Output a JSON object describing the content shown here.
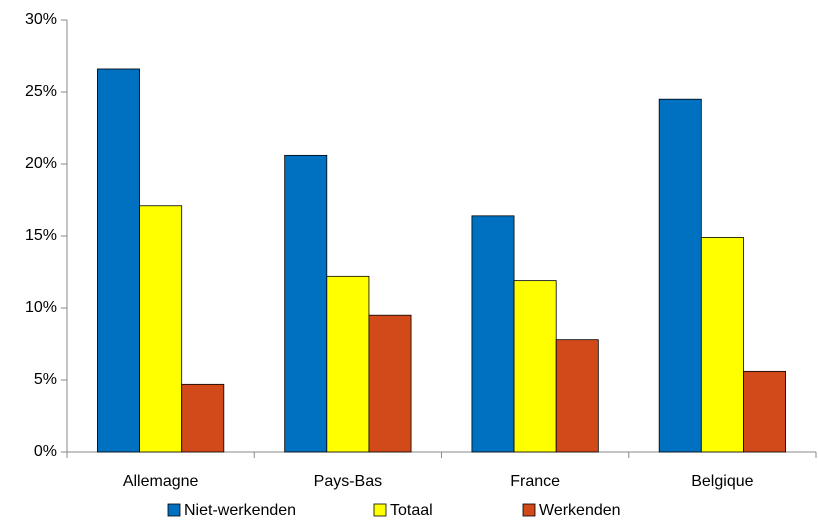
{
  "chart_data": {
    "type": "bar",
    "categories": [
      "Allemagne",
      "Pays-Bas",
      "France",
      "Belgique"
    ],
    "series": [
      {
        "name": "Niet-werkenden",
        "color": "#0070c0",
        "values": [
          26.6,
          20.6,
          16.4,
          24.5
        ]
      },
      {
        "name": "Totaal",
        "color": "#ffff00",
        "values": [
          17.1,
          12.2,
          11.9,
          14.9
        ]
      },
      {
        "name": "Werkenden",
        "color": "#d24a1a",
        "values": [
          4.7,
          9.5,
          7.8,
          5.6
        ]
      }
    ],
    "ylim": [
      0,
      30
    ],
    "yticks": [
      {
        "value": 0,
        "label": "0%"
      },
      {
        "value": 5,
        "label": "5%"
      },
      {
        "value": 10,
        "label": "10%"
      },
      {
        "value": 15,
        "label": "15%"
      },
      {
        "value": 20,
        "label": "20%"
      },
      {
        "value": 25,
        "label": "25%"
      },
      {
        "value": 30,
        "label": "30%"
      }
    ],
    "grid": false,
    "legend": "bottom"
  }
}
